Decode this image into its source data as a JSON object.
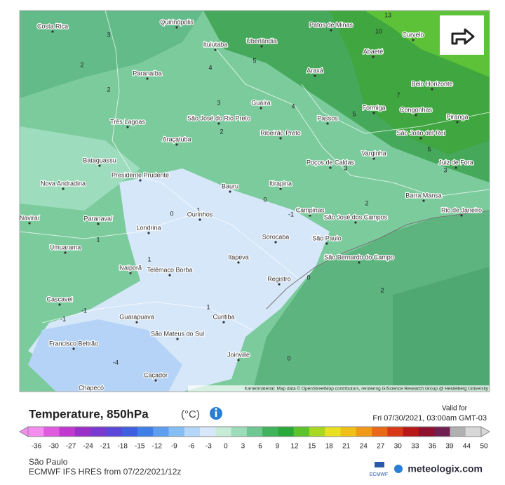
{
  "map": {
    "cities": [
      "Costa Rica",
      "Quirinópolis",
      "Patos de Minas",
      "Ituiutaba",
      "Uberlândia",
      "Curvelo",
      "Abaeté",
      "Paranaíba",
      "Araxá",
      "Belo Horizonte",
      "Guaíra",
      "Formiga",
      "Congonhas",
      "Piranga",
      "Três Lagoas",
      "São José do Rio Preto",
      "Passos",
      "Ribeirão Preto",
      "São João del-Rei",
      "Araçatuba",
      "Varginha",
      "Poços de Caldas",
      "Juiz de Fora",
      "Bataguassu",
      "Presidente Prudente",
      "Nova Andradina",
      "Bauru",
      "Itirapina",
      "Barra Mansa",
      "Campinas",
      "São José dos Campos",
      "Rio de Janeiro",
      "Naviraí",
      "Paranavaí",
      "Ourinhos",
      "Londrina",
      "Sorocaba",
      "São Paulo",
      "Umuarama",
      "São Bernardo do Campo",
      "Itapeva",
      "Ivaiporã",
      "Telêmaco Borba",
      "Registro",
      "Cascavel",
      "Guarapuava",
      "Curitiba",
      "São Mateus do Sul",
      "Francisco Beltrão",
      "Joinville",
      "Caçador",
      "Chapecó"
    ],
    "contour_labels": [
      3,
      2,
      2,
      4,
      5,
      3,
      4,
      10,
      13,
      7,
      5,
      5,
      3,
      3,
      2,
      0,
      0,
      1,
      -1,
      2,
      1,
      -1,
      -1,
      1,
      -4,
      0,
      2,
      0,
      1
    ],
    "attribution": "Kartenmaterial: Map data © OpenStreetMap contributors, rendering GIScience Research Group @ Heidelberg University"
  },
  "legend": {
    "title": "Temperature, 850hPa",
    "unit": "(°C)",
    "valid_label": "Valid for",
    "valid_time": "Fri 07/30/2021, 03:00am GMT-03",
    "ticks": [
      -36,
      -30,
      -27,
      -24,
      -21,
      -18,
      -15,
      -12,
      -9,
      -6,
      -3,
      0,
      3,
      6,
      9,
      12,
      15,
      18,
      21,
      24,
      27,
      30,
      33,
      36,
      39,
      44,
      50
    ],
    "colors": [
      "#f58cf0",
      "#e05ae0",
      "#c038d0",
      "#9a2fc8",
      "#7a3ad0",
      "#5a48d8",
      "#3f5fe0",
      "#3f7fe8",
      "#5d9ef0",
      "#85bdf5",
      "#b4d6f8",
      "#d8e8fa",
      "#c6ecd8",
      "#9cdcb8",
      "#6fc894",
      "#3fb45a",
      "#2aa83a",
      "#5cc42a",
      "#a8d820",
      "#e8e020",
      "#f0c018",
      "#f09818",
      "#e86818",
      "#d83818",
      "#b81818",
      "#901030",
      "#702050",
      "#b0b0b0",
      "#d8d8d8"
    ]
  },
  "footer": {
    "location": "São Paulo",
    "model": "ECMWF IFS HRES from 07/22/2021/12z",
    "ecmwf": "ECMWF",
    "brand": "meteologix.com"
  }
}
